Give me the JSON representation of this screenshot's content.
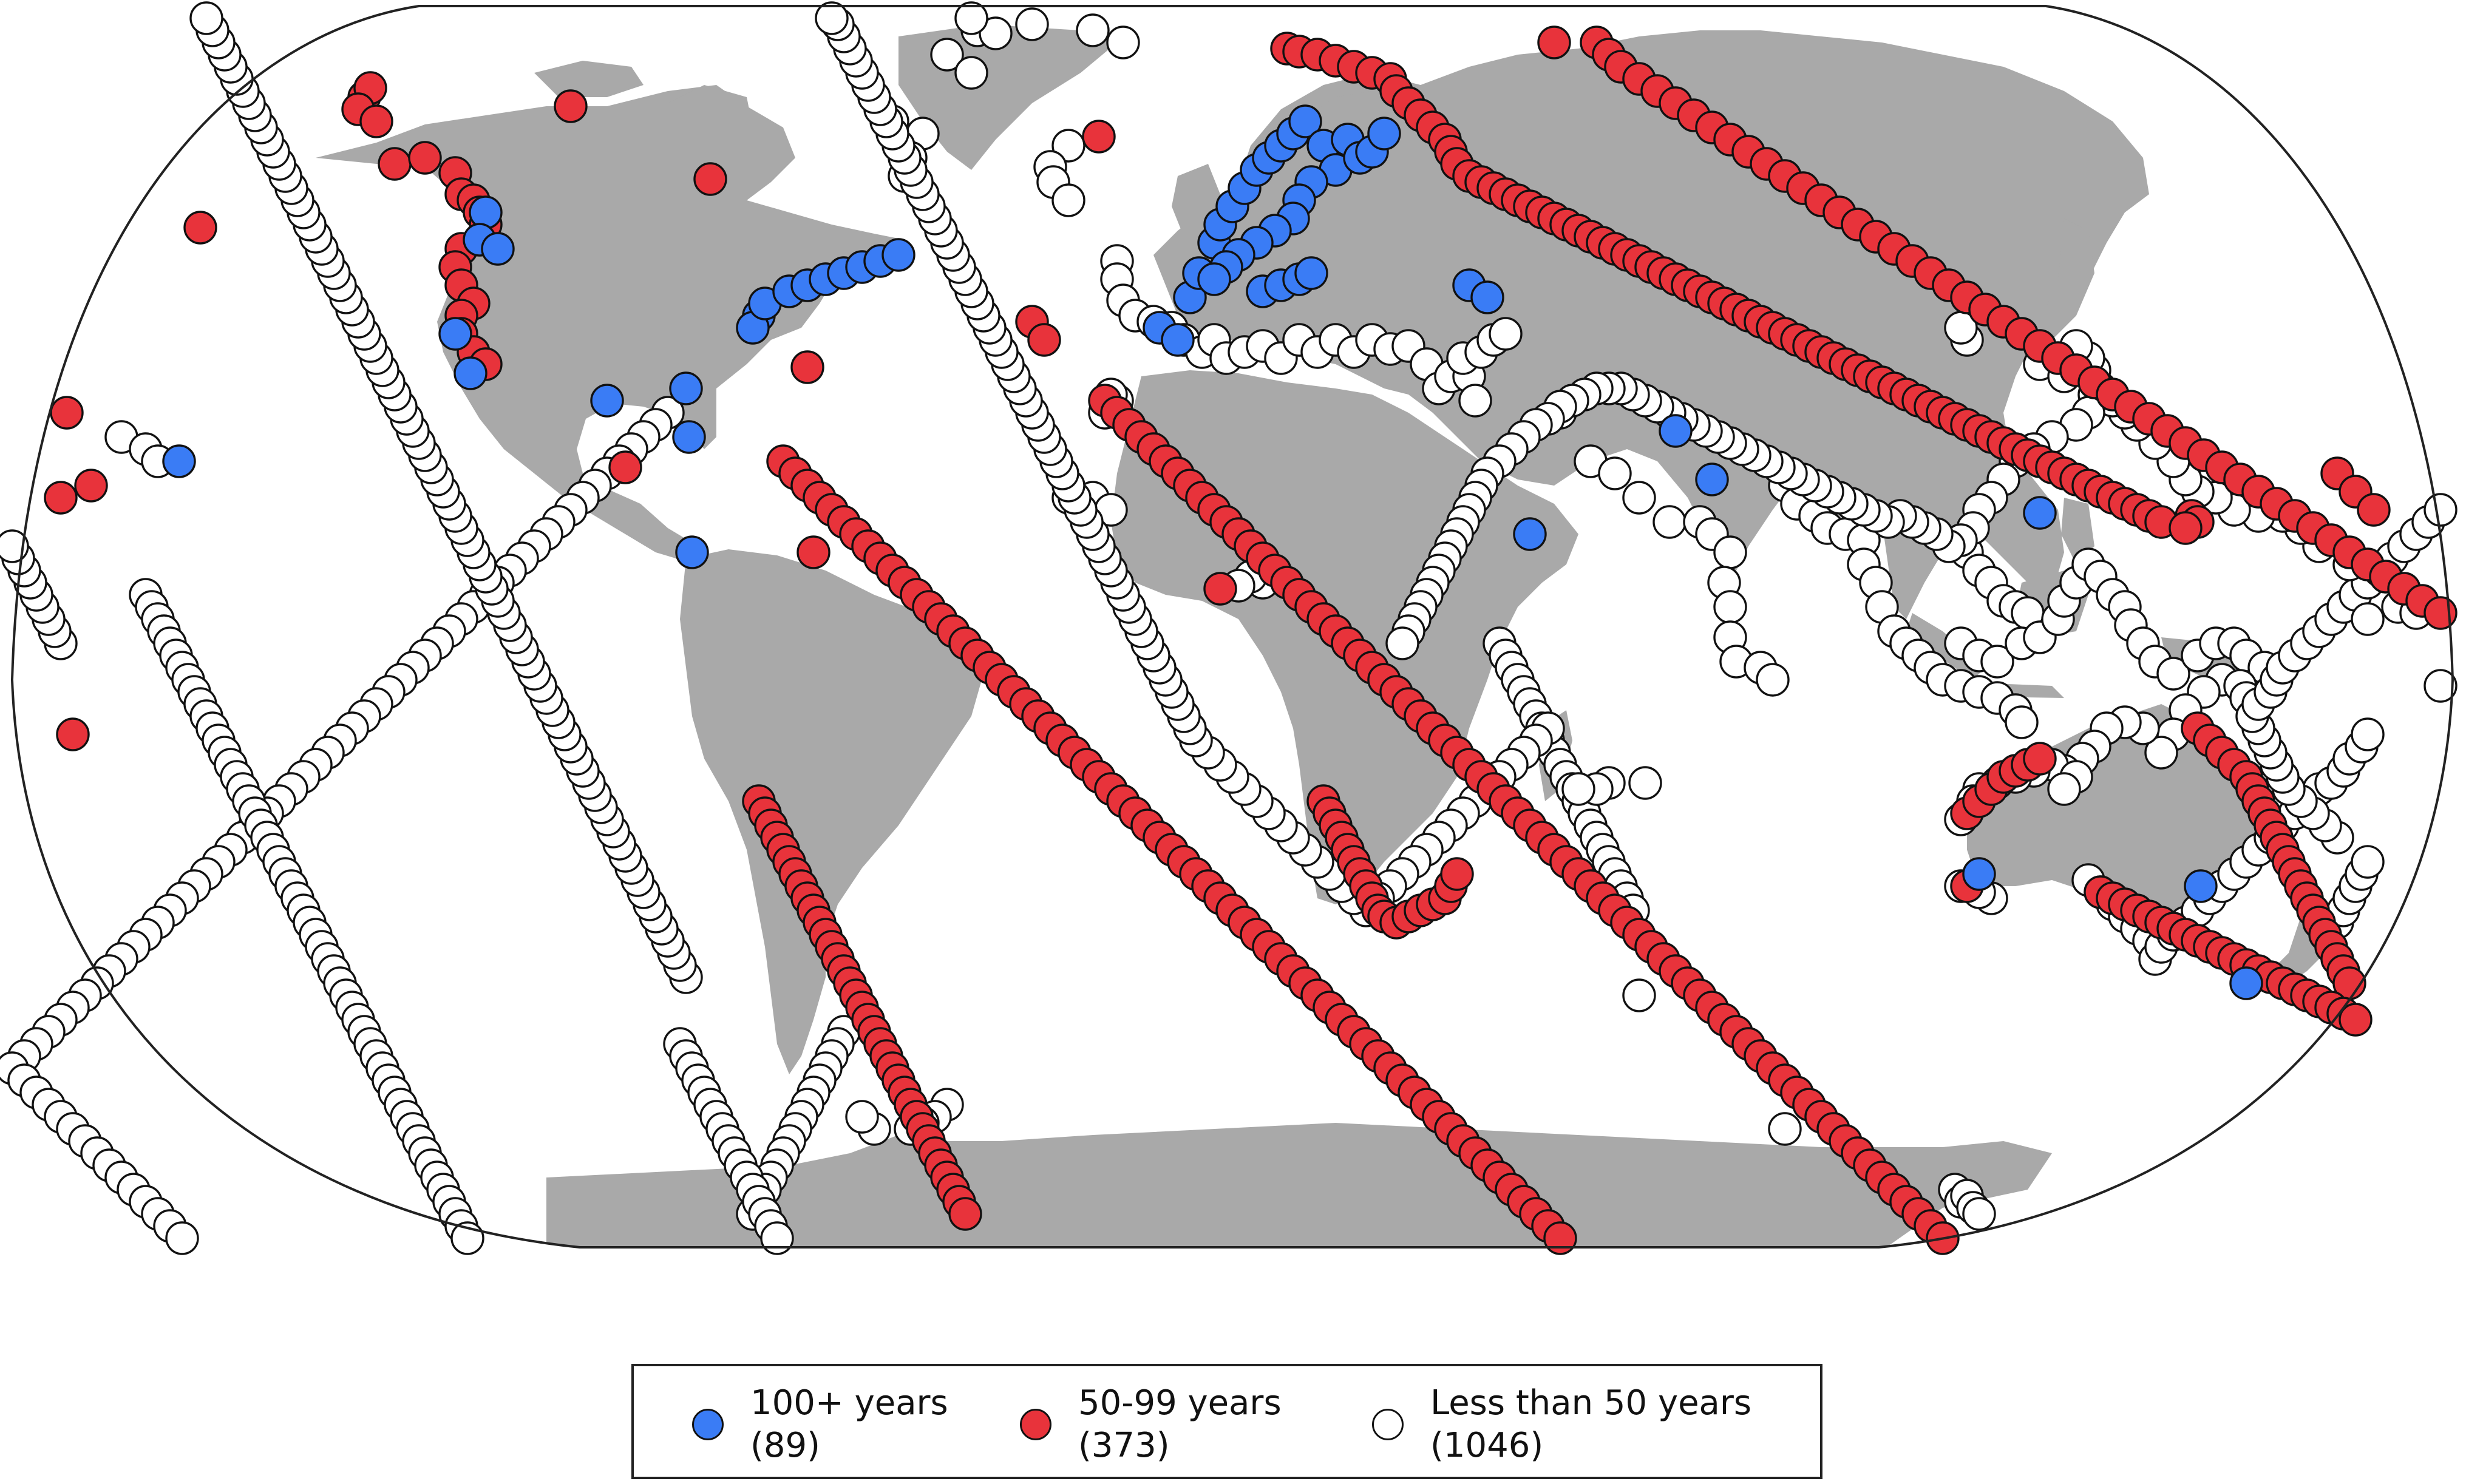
{
  "map": {
    "projection": "Robinson",
    "land_color": "#a9a9a9",
    "ocean_color": "#ffffff"
  },
  "categories": [
    {
      "key": "blue",
      "label": "100+ years",
      "count": "(89)",
      "color": "#3a7cf5"
    },
    {
      "key": "red",
      "label": "50-99 years",
      "count": "(373)",
      "color": "#e8333b"
    },
    {
      "key": "white",
      "label": "Less than 50 years",
      "count": "(1046)",
      "color": "#ffffff"
    }
  ]
}
